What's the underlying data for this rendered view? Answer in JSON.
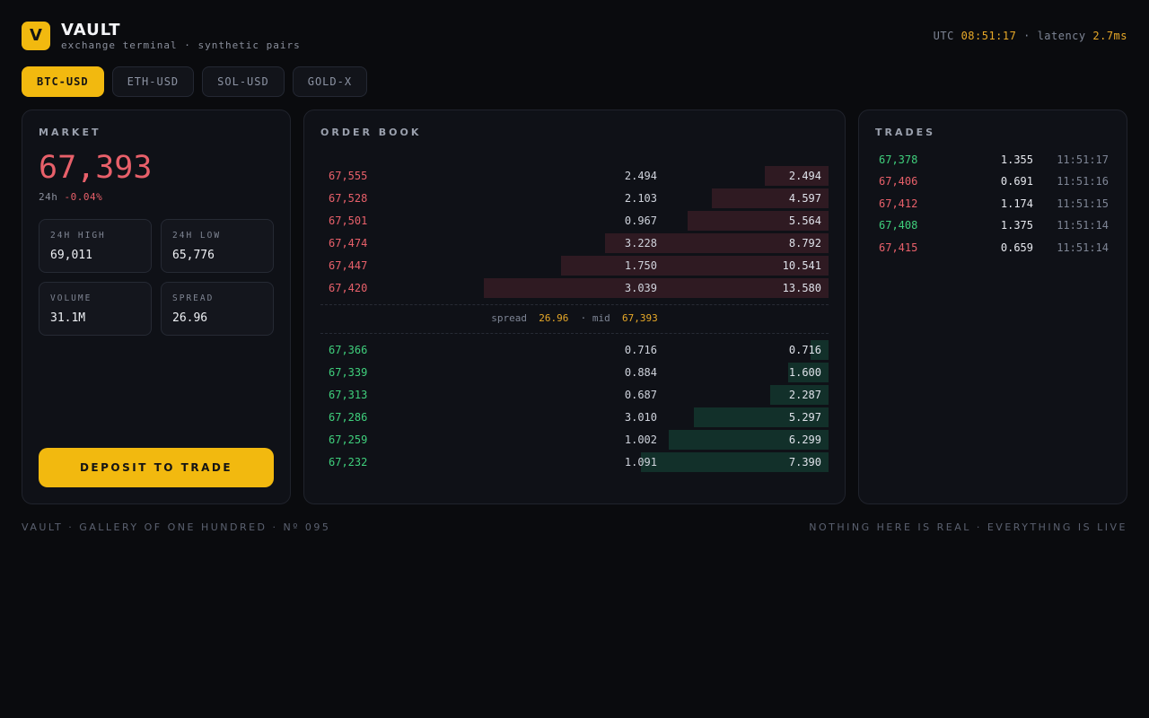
{
  "brand": {
    "logo_letter": "V",
    "name": "VAULT",
    "subtitle": "exchange terminal · synthetic pairs"
  },
  "status": {
    "utc_label": "UTC",
    "time": "08:51:17",
    "sep": "·",
    "latency_label": "latency",
    "latency": "2.7ms"
  },
  "tabs": [
    {
      "label": "BTC-USD",
      "active": true
    },
    {
      "label": "ETH-USD",
      "active": false
    },
    {
      "label": "SOL-USD",
      "active": false
    },
    {
      "label": "GOLD-X",
      "active": false
    }
  ],
  "market": {
    "title": "MARKET",
    "price": "67,393",
    "change_label": "24h",
    "change": "-0.04%",
    "stats": [
      {
        "label": "24H HIGH",
        "value": "69,011"
      },
      {
        "label": "24H LOW",
        "value": "65,776"
      },
      {
        "label": "VOLUME",
        "value": "31.1M"
      },
      {
        "label": "SPREAD",
        "value": "26.96"
      }
    ],
    "deposit_label": "DEPOSIT TO TRADE"
  },
  "order_book": {
    "title": "ORDER BOOK",
    "asks": [
      {
        "price": "67,555",
        "size": "2.494",
        "total": "2.494",
        "depth": 0.126
      },
      {
        "price": "67,528",
        "size": "2.103",
        "total": "4.597",
        "depth": 0.23
      },
      {
        "price": "67,501",
        "size": "0.967",
        "total": "5.564",
        "depth": 0.277
      },
      {
        "price": "67,474",
        "size": "3.228",
        "total": "8.792",
        "depth": 0.44
      },
      {
        "price": "67,447",
        "size": "1.750",
        "total": "10.541",
        "depth": 0.527
      },
      {
        "price": "67,420",
        "size": "3.039",
        "total": "13.580",
        "depth": 0.678
      }
    ],
    "spread_label": "spread",
    "spread": "26.96",
    "mid_label": "· mid",
    "mid": "67,393",
    "bids": [
      {
        "price": "67,366",
        "size": "0.716",
        "total": "0.716",
        "depth": 0.036
      },
      {
        "price": "67,339",
        "size": "0.884",
        "total": "1.600",
        "depth": 0.08
      },
      {
        "price": "67,313",
        "size": "0.687",
        "total": "2.287",
        "depth": 0.115
      },
      {
        "price": "67,286",
        "size": "3.010",
        "total": "5.297",
        "depth": 0.265
      },
      {
        "price": "67,259",
        "size": "1.002",
        "total": "6.299",
        "depth": 0.315
      },
      {
        "price": "67,232",
        "size": "1.091",
        "total": "7.390",
        "depth": 0.37
      }
    ]
  },
  "trades": {
    "title": "TRADES",
    "rows": [
      {
        "price": "67,378",
        "side": "buy",
        "size": "1.355",
        "time": "11:51:17"
      },
      {
        "price": "67,406",
        "side": "sell",
        "size": "0.691",
        "time": "11:51:16"
      },
      {
        "price": "67,412",
        "side": "sell",
        "size": "1.174",
        "time": "11:51:15"
      },
      {
        "price": "67,408",
        "side": "buy",
        "size": "1.375",
        "time": "11:51:14"
      },
      {
        "price": "67,415",
        "side": "sell",
        "size": "0.659",
        "time": "11:51:14"
      }
    ]
  },
  "footer": {
    "left": "VAULT · GALLERY OF ONE HUNDRED · Nº 095",
    "right": "NOTHING HERE IS REAL · EVERYTHING IS LIVE"
  },
  "colors": {
    "accent": "#f2b90f",
    "ask": "#e8606a",
    "bid": "#3fcf7c",
    "background": "#0a0b0e"
  }
}
